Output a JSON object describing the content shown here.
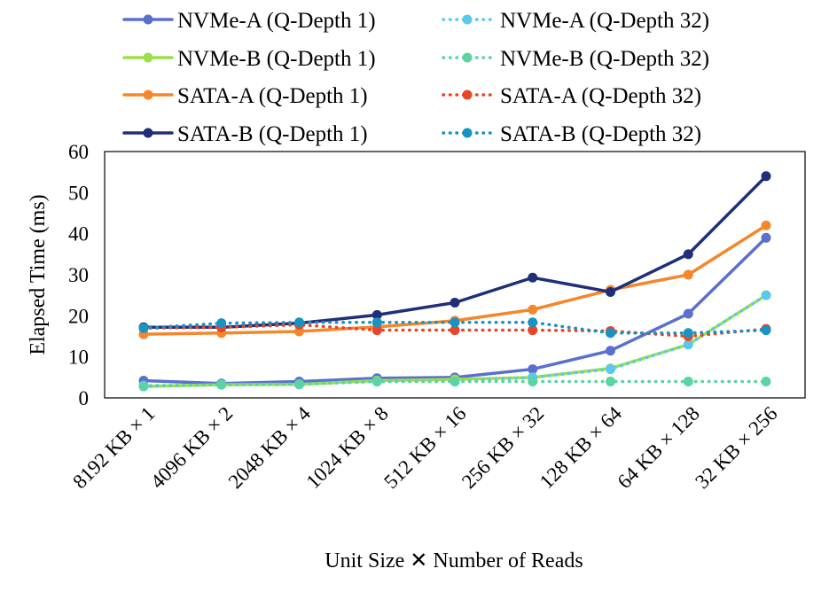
{
  "chart_data": {
    "type": "line",
    "title": "",
    "xlabel": "Unit Size ✕ Number of Reads",
    "ylabel": "Elapsed Time (ms)",
    "ylim": [
      0,
      60
    ],
    "yticks": [
      "0",
      "10",
      "20",
      "30",
      "40",
      "50",
      "60"
    ],
    "grid": false,
    "legend_position": "top",
    "categories": [
      "8192 KB × 1",
      "4096 KB × 2",
      "2048 KB × 4",
      "1024 KB × 8",
      "512 KB × 16",
      "256 KB × 32",
      "128 KB × 64",
      "64 KB × 128",
      "32 KB × 256"
    ],
    "series": [
      {
        "name": "NVMe-A (Q-Depth 1)",
        "color": "#5b6fcf",
        "dash": "solid",
        "values": [
          4.2,
          3.5,
          4.0,
          4.8,
          5.0,
          7.0,
          11.5,
          20.5,
          39.0
        ]
      },
      {
        "name": "NVMe-A (Q-Depth 32)",
        "color": "#5bc8ef",
        "dash": "dotted",
        "values": [
          3.0,
          3.2,
          3.3,
          4.0,
          4.0,
          5.0,
          7.0,
          13.0,
          25.0
        ]
      },
      {
        "name": "NVMe-B (Q-Depth 1)",
        "color": "#9be04a",
        "dash": "solid",
        "values": [
          2.8,
          3.2,
          3.3,
          4.2,
          4.5,
          5.0,
          7.2,
          13.0,
          25.0
        ]
      },
      {
        "name": "NVMe-B (Q-Depth 32)",
        "color": "#5bd3a3",
        "dash": "dotted",
        "values": [
          2.8,
          3.3,
          3.4,
          4.0,
          4.0,
          4.0,
          4.0,
          4.0,
          4.0
        ]
      },
      {
        "name": "SATA-A (Q-Depth 1)",
        "color": "#f5862a",
        "dash": "solid",
        "values": [
          15.5,
          15.8,
          16.2,
          17.3,
          18.8,
          21.5,
          26.3,
          30.0,
          42.0
        ]
      },
      {
        "name": "SATA-A (Q-Depth 32)",
        "color": "#e8452a",
        "dash": "dotted",
        "values": [
          17.0,
          17.2,
          17.8,
          16.5,
          16.5,
          16.5,
          16.3,
          15.0,
          16.8
        ]
      },
      {
        "name": "SATA-B (Q-Depth 1)",
        "color": "#1f2f78",
        "dash": "solid",
        "values": [
          17.2,
          17.2,
          18.2,
          20.2,
          23.2,
          29.3,
          25.8,
          35.0,
          54.0
        ]
      },
      {
        "name": "SATA-B (Q-Depth 32)",
        "color": "#1893c2",
        "dash": "dotted",
        "values": [
          17.0,
          18.2,
          18.4,
          18.4,
          18.4,
          18.4,
          15.8,
          15.8,
          16.5
        ]
      }
    ]
  }
}
